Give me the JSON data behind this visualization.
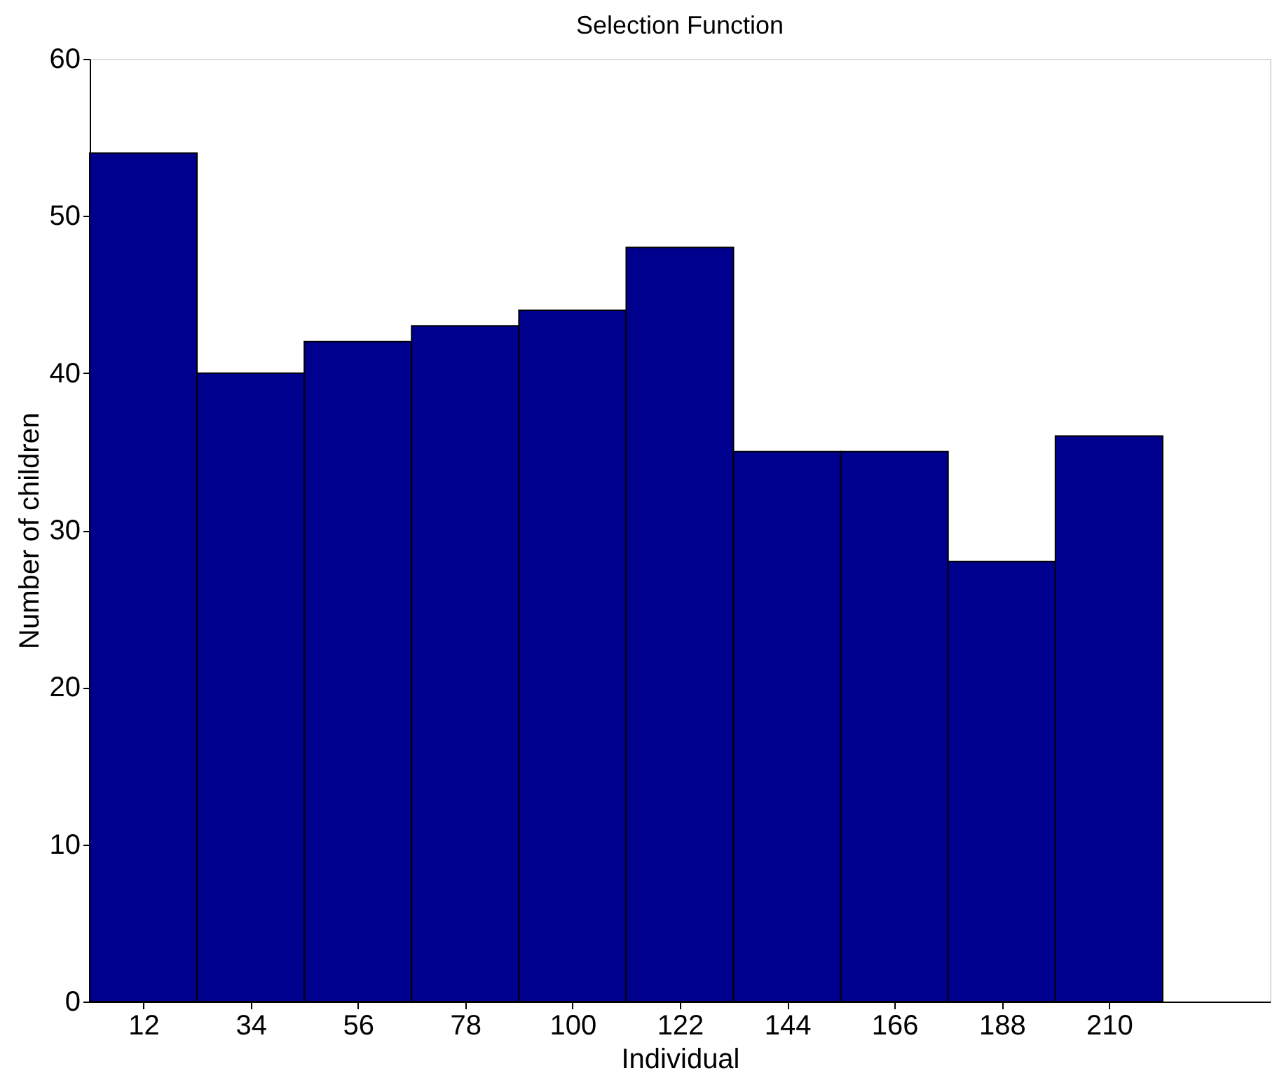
{
  "chart_data": {
    "type": "histogram",
    "title": "Selection Function",
    "xlabel": "Individual",
    "ylabel": "Number of children",
    "bins": [
      1,
      23,
      45,
      67,
      89,
      111,
      133,
      155,
      177,
      199,
      221
    ],
    "values": [
      54,
      40,
      42,
      43,
      44,
      48,
      35,
      35,
      28,
      36
    ],
    "color": "#00008f",
    "xlim": [
      1,
      243
    ],
    "xticks": [
      12,
      34,
      56,
      78,
      100,
      122,
      144,
      166,
      188,
      210
    ],
    "ylim": [
      0,
      60
    ],
    "yticks": [
      0,
      10,
      20,
      30,
      40,
      50,
      60
    ],
    "grid": false
  }
}
